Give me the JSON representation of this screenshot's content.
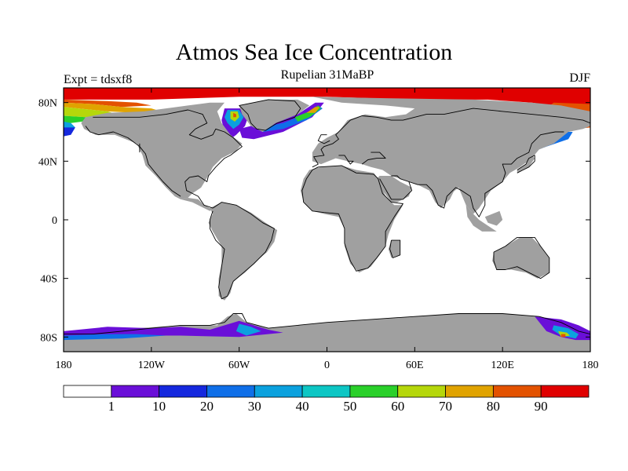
{
  "header": {
    "title": "Atmos Sea Ice Concentration",
    "subtitle": "Rupelian  31MaBP",
    "experiment": "Expt = tdsxf8",
    "season": "DJF"
  },
  "map": {
    "projection": "cylindrical equidistant",
    "lon_range": [
      -180,
      180
    ],
    "lat_range": [
      -90,
      90
    ],
    "land_color": "#a0a0a0",
    "ocean_color": "#ffffff",
    "coastline_color": "#000000",
    "lon_ticks": [
      {
        "value": -180,
        "label": "180"
      },
      {
        "value": -120,
        "label": "120W"
      },
      {
        "value": -60,
        "label": "60W"
      },
      {
        "value": 0,
        "label": "0"
      },
      {
        "value": 60,
        "label": "60E"
      },
      {
        "value": 120,
        "label": "120E"
      },
      {
        "value": 180,
        "label": "180"
      }
    ],
    "lat_ticks": [
      {
        "value": 80,
        "label": "80N"
      },
      {
        "value": 40,
        "label": "40N"
      },
      {
        "value": 0,
        "label": "0"
      },
      {
        "value": -40,
        "label": "40S"
      },
      {
        "value": -80,
        "label": "80S"
      }
    ]
  },
  "colorbar": {
    "bins": [
      {
        "color": "#ffffff"
      },
      {
        "color": "#6a0fd8"
      },
      {
        "color": "#1528de"
      },
      {
        "color": "#0f6fe8"
      },
      {
        "color": "#0ba1de"
      },
      {
        "color": "#0dc6c4"
      },
      {
        "color": "#2ad02a"
      },
      {
        "color": "#b5d70b"
      },
      {
        "color": "#e0a300"
      },
      {
        "color": "#e35200"
      },
      {
        "color": "#e00000"
      }
    ],
    "labels": [
      "1",
      "10",
      "20",
      "30",
      "40",
      "50",
      "60",
      "70",
      "80",
      "90"
    ]
  }
}
